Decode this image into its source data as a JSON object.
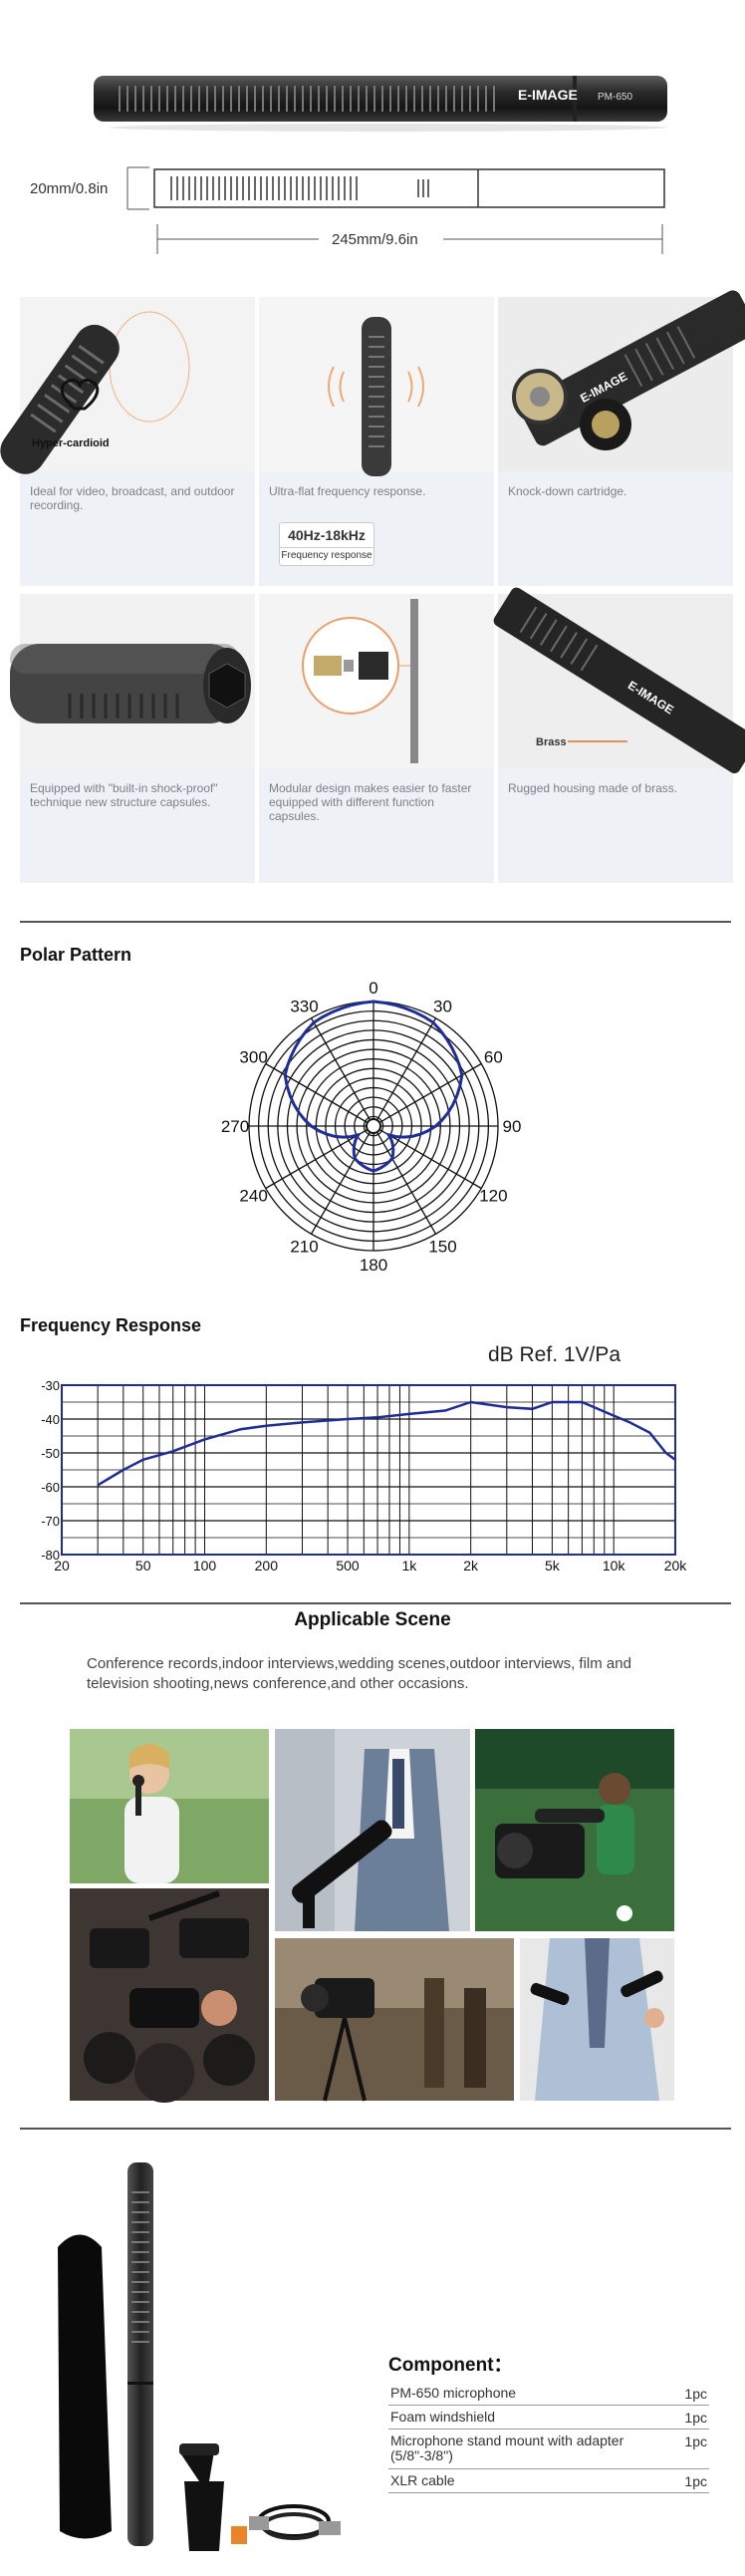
{
  "product": {
    "brand": "E-IMAGE",
    "model": "PM-650"
  },
  "dimensions": {
    "diameter": "20mm/0.8in",
    "length": "245mm/9.6in"
  },
  "features": [
    {
      "badge": "Hyper-cardioid",
      "caption": "Ideal for video, broadcast, and outdoor recording."
    },
    {
      "caption": "Ultra-flat frequency response.",
      "freq_range": "40Hz-18kHz",
      "freq_label": "Frequency response"
    },
    {
      "caption": "Knock-down cartridge."
    },
    {
      "caption": "Equipped with \"built-in shock-proof\" technique new structure capsules."
    },
    {
      "caption": "Modular design makes easier to faster equipped with different function capsules."
    },
    {
      "callout": "Brass",
      "caption": "Rugged housing made of brass."
    }
  ],
  "polar": {
    "title": "Polar Pattern",
    "angle_labels": [
      "0",
      "30",
      "60",
      "90",
      "120",
      "150",
      "180",
      "210",
      "240",
      "270",
      "300",
      "330"
    ]
  },
  "frequency": {
    "title": "Frequency Response",
    "ref_label": "dB Ref.  1V/Pa"
  },
  "chart_data": [
    {
      "type": "line",
      "polar": true,
      "title": "Polar Pattern",
      "angles": [
        0,
        30,
        60,
        90,
        120,
        150,
        180,
        210,
        240,
        270,
        300,
        330
      ],
      "rings": 13,
      "series": [
        {
          "values": [
            1.0,
            0.96,
            0.82,
            0.5,
            0.14,
            0.3,
            0.36,
            0.3,
            0.14,
            0.5,
            0.82,
            0.96
          ]
        }
      ],
      "color": "#1f2d9a"
    },
    {
      "type": "line",
      "title": "Frequency Response",
      "xscale": "log",
      "x_ticks": [
        "20",
        "50",
        "100",
        "200",
        "500",
        "1k",
        "2k",
        "5k",
        "10k",
        "20k"
      ],
      "y_ticks": [
        "-30",
        "-40",
        "-50",
        "-60",
        "-70",
        "-80"
      ],
      "ylim": [
        -80,
        -30
      ],
      "xlim": [
        20,
        20000
      ],
      "grid": true,
      "series": [
        {
          "x": [
            30,
            40,
            50,
            70,
            100,
            150,
            200,
            300,
            500,
            700,
            1000,
            1500,
            2000,
            3000,
            4000,
            5000,
            7000,
            10000,
            12000,
            15000,
            18000,
            20000
          ],
          "y": [
            -59.5,
            -55,
            -52,
            -49.5,
            -46,
            -43,
            -42,
            -41,
            -40,
            -39.5,
            -38.5,
            -37.5,
            -35,
            -36.5,
            -37,
            -35,
            -35,
            -39,
            -41,
            -44,
            -50,
            -52
          ]
        }
      ],
      "color": "#1f2d9a"
    }
  ],
  "scene": {
    "title": "Applicable Scene",
    "description": "Conference records,indoor interviews,wedding scenes,outdoor interviews, film and television shooting,news conference,and other occasions."
  },
  "component": {
    "title": "Component：",
    "items": [
      {
        "name": "PM-650 microphone",
        "qty": "1pc"
      },
      {
        "name": "Foam windshield",
        "qty": "1pc"
      },
      {
        "name": "Microphone stand mount with adapter (5/8\"-3/8\")",
        "qty": "1pc"
      },
      {
        "name": "XLR cable",
        "qty": "1pc"
      }
    ]
  }
}
